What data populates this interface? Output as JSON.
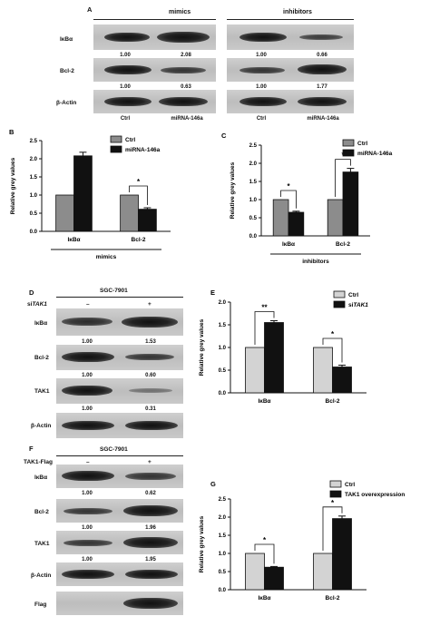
{
  "panelA": {
    "letter": "A",
    "group_mimics": "mimics",
    "group_inhibitors": "inhibitors",
    "rows": [
      {
        "label": "IκBα",
        "mimics_vals": [
          "1.00",
          "2.08"
        ],
        "inhib_vals": [
          "1.00",
          "0.66"
        ]
      },
      {
        "label": "Bcl-2",
        "mimics_vals": [
          "1.00",
          "0.63"
        ],
        "inhib_vals": [
          "1.00",
          "1.77"
        ]
      },
      {
        "label": "β-Actin"
      }
    ],
    "lanes": [
      "Ctrl",
      "miRNA-146a",
      "Ctrl",
      "miRNA-146a"
    ]
  },
  "panelD": {
    "letter": "D",
    "cell_line": "SGC-7901",
    "treatment": "siTAK1",
    "treatment_prefix": "si",
    "treatment_italic": "TAK1",
    "lane_signs": [
      "–",
      "+"
    ],
    "rows": [
      {
        "label": "IκBα",
        "vals": [
          "1.00",
          "1.53"
        ]
      },
      {
        "label": "Bcl-2",
        "vals": [
          "1.00",
          "0.60"
        ]
      },
      {
        "label": "TAK1",
        "vals": [
          "1.00",
          "0.31"
        ]
      },
      {
        "label": "β-Actin"
      }
    ]
  },
  "panelF": {
    "letter": "F",
    "cell_line": "SGC-7901",
    "treatment": "TAK1-Flag",
    "lane_signs": [
      "–",
      "+"
    ],
    "rows": [
      {
        "label": "IκBα",
        "vals": [
          "1.00",
          "0.62"
        ]
      },
      {
        "label": "Bcl-2",
        "vals": [
          "1.00",
          "1.96"
        ]
      },
      {
        "label": "TAK1",
        "vals": [
          "1.00",
          "1.95"
        ]
      },
      {
        "label": "β-Actin"
      },
      {
        "label": "Flag"
      }
    ]
  },
  "chart_data": [
    {
      "id": "B",
      "letter": "B",
      "type": "bar",
      "ylabel": "Relative grey values",
      "categories": [
        "IκBα",
        "Bcl-2"
      ],
      "group_label": "mimics",
      "ylim": [
        0,
        2.5
      ],
      "yticks": [
        "0.0",
        "0.5",
        "1.0",
        "1.5",
        "2.0",
        "2.5"
      ],
      "series": [
        {
          "name": "Ctrl",
          "values": [
            1.0,
            1.0
          ],
          "errors": [
            0,
            0
          ],
          "color": "#8c8c8c"
        },
        {
          "name": "miRNA-146a",
          "values": [
            2.08,
            0.61
          ],
          "errors": [
            0.1,
            0.04
          ],
          "color": "#111111"
        }
      ],
      "significance": [
        {
          "category": 1,
          "mark": "*"
        }
      ],
      "legend": "top-right"
    },
    {
      "id": "C",
      "letter": "C",
      "type": "bar",
      "ylabel": "Relative grey values",
      "categories": [
        "IκBα",
        "Bcl-2"
      ],
      "group_label": "inhibitors",
      "ylim": [
        0,
        2.5
      ],
      "yticks": [
        "0.0",
        "0.5",
        "1.0",
        "1.5",
        "2.0",
        "2.5"
      ],
      "series": [
        {
          "name": "Ctrl",
          "values": [
            1.0,
            1.0
          ],
          "errors": [
            0,
            0
          ],
          "color": "#8c8c8c"
        },
        {
          "name": "miRNA-146a",
          "values": [
            0.65,
            1.76
          ],
          "errors": [
            0.03,
            0.1
          ],
          "color": "#111111"
        }
      ],
      "significance": [
        {
          "category": 0,
          "mark": "*"
        },
        {
          "category": 1,
          "mark": "*"
        }
      ],
      "legend": "top-right"
    },
    {
      "id": "E",
      "letter": "E",
      "type": "bar",
      "ylabel": "Relative grey values",
      "categories": [
        "IκBα",
        "Bcl-2"
      ],
      "ylim": [
        0,
        2.0
      ],
      "yticks": [
        "0.0",
        "0.5",
        "1.0",
        "1.5",
        "2.0"
      ],
      "series": [
        {
          "name": "Ctrl",
          "values": [
            1.0,
            1.0
          ],
          "errors": [
            0,
            0
          ],
          "color": "#d3d3d3"
        },
        {
          "name": "siTAK1",
          "name_prefix": "si",
          "name_italic": "TAK1",
          "values": [
            1.55,
            0.57
          ],
          "errors": [
            0.04,
            0.04
          ],
          "color": "#111111"
        }
      ],
      "significance": [
        {
          "category": 0,
          "mark": "**"
        },
        {
          "category": 1,
          "mark": "*"
        }
      ],
      "legend": "top-right"
    },
    {
      "id": "G",
      "letter": "G",
      "type": "bar",
      "ylabel": "Relative grey values",
      "categories": [
        "IκBα",
        "Bcl-2"
      ],
      "ylim": [
        0,
        2.5
      ],
      "yticks": [
        "0.0",
        "0.5",
        "1.0",
        "1.5",
        "2.0",
        "2.5"
      ],
      "series": [
        {
          "name": "Ctrl",
          "values": [
            1.0,
            1.0
          ],
          "errors": [
            0,
            0
          ],
          "color": "#d3d3d3"
        },
        {
          "name": "TAK1 overexpression",
          "values": [
            0.62,
            1.96
          ],
          "errors": [
            0.02,
            0.07
          ],
          "color": "#111111"
        }
      ],
      "significance": [
        {
          "category": 0,
          "mark": "*"
        },
        {
          "category": 1,
          "mark": "*"
        }
      ],
      "legend": "top-right"
    }
  ]
}
